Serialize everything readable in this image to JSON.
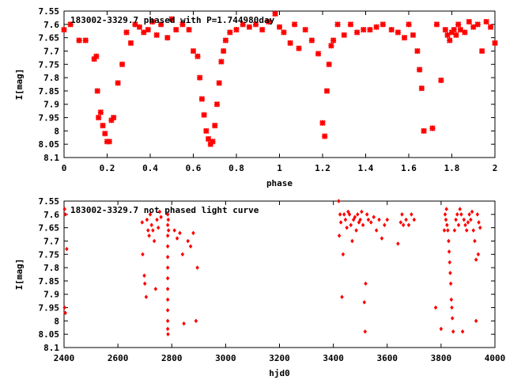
{
  "chart_data": [
    {
      "type": "scatter",
      "title": "183002-3329.7 phased with P=1.744980day",
      "xlabel": "phase",
      "ylabel": "I[mag]",
      "xlim": [
        0,
        2
      ],
      "ylim": [
        7.55,
        8.1
      ],
      "y_inverted": true,
      "grid": false,
      "marker_color": "#ff0000",
      "marker": "cross",
      "x_ticks": [
        "0",
        "0.2",
        "0.4",
        "0.6",
        "0.8",
        "1",
        "1.2",
        "1.4",
        "1.6",
        "1.8",
        "2"
      ],
      "y_ticks": [
        "7.55",
        "7.6",
        "7.65",
        "7.7",
        "7.75",
        "7.8",
        "7.85",
        "7.9",
        "7.95",
        "8",
        "8.05",
        "8.1"
      ],
      "series": [
        {
          "points": [
            [
              0.0,
              7.62
            ],
            [
              0.03,
              7.6
            ],
            [
              0.07,
              7.66
            ],
            [
              0.1,
              7.66
            ],
            [
              0.14,
              7.73
            ],
            [
              0.15,
              7.72
            ],
            [
              0.155,
              7.85
            ],
            [
              0.16,
              7.95
            ],
            [
              0.17,
              7.93
            ],
            [
              0.18,
              7.98
            ],
            [
              0.19,
              8.01
            ],
            [
              0.2,
              8.04
            ],
            [
              0.21,
              8.04
            ],
            [
              0.22,
              7.96
            ],
            [
              0.23,
              7.95
            ],
            [
              0.25,
              7.82
            ],
            [
              0.27,
              7.75
            ],
            [
              0.29,
              7.63
            ],
            [
              0.31,
              7.67
            ],
            [
              0.33,
              7.6
            ],
            [
              0.35,
              7.61
            ],
            [
              0.37,
              7.63
            ],
            [
              0.39,
              7.62
            ],
            [
              0.41,
              7.59
            ],
            [
              0.43,
              7.64
            ],
            [
              0.45,
              7.6
            ],
            [
              0.48,
              7.65
            ],
            [
              0.5,
              7.58
            ],
            [
              0.52,
              7.62
            ],
            [
              0.55,
              7.6
            ],
            [
              0.58,
              7.62
            ],
            [
              0.6,
              7.7
            ],
            [
              0.62,
              7.72
            ],
            [
              0.63,
              7.8
            ],
            [
              0.64,
              7.88
            ],
            [
              0.65,
              7.94
            ],
            [
              0.66,
              8.0
            ],
            [
              0.67,
              8.03
            ],
            [
              0.68,
              8.05
            ],
            [
              0.69,
              8.04
            ],
            [
              0.7,
              7.98
            ],
            [
              0.71,
              7.9
            ],
            [
              0.72,
              7.82
            ],
            [
              0.73,
              7.74
            ],
            [
              0.74,
              7.7
            ],
            [
              0.75,
              7.66
            ],
            [
              0.77,
              7.63
            ],
            [
              0.8,
              7.62
            ],
            [
              0.83,
              7.6
            ],
            [
              0.86,
              7.61
            ],
            [
              0.89,
              7.6
            ],
            [
              0.92,
              7.62
            ],
            [
              0.95,
              7.59
            ],
            [
              0.98,
              7.56
            ],
            [
              1.0,
              7.61
            ],
            [
              1.02,
              7.63
            ],
            [
              1.05,
              7.67
            ],
            [
              1.07,
              7.6
            ],
            [
              1.09,
              7.69
            ],
            [
              1.12,
              7.62
            ],
            [
              1.15,
              7.66
            ],
            [
              1.18,
              7.71
            ],
            [
              1.2,
              7.97
            ],
            [
              1.21,
              8.02
            ],
            [
              1.22,
              7.85
            ],
            [
              1.23,
              7.75
            ],
            [
              1.24,
              7.68
            ],
            [
              1.25,
              7.66
            ],
            [
              1.27,
              7.6
            ],
            [
              1.3,
              7.64
            ],
            [
              1.33,
              7.6
            ],
            [
              1.36,
              7.63
            ],
            [
              1.39,
              7.62
            ],
            [
              1.42,
              7.62
            ],
            [
              1.45,
              7.61
            ],
            [
              1.48,
              7.6
            ],
            [
              1.52,
              7.62
            ],
            [
              1.55,
              7.63
            ],
            [
              1.58,
              7.65
            ],
            [
              1.6,
              7.6
            ],
            [
              1.62,
              7.64
            ],
            [
              1.64,
              7.7
            ],
            [
              1.65,
              7.77
            ],
            [
              1.66,
              7.84
            ],
            [
              1.67,
              8.0
            ],
            [
              1.71,
              7.99
            ],
            [
              1.73,
              7.6
            ],
            [
              1.75,
              7.81
            ],
            [
              1.77,
              7.62
            ],
            [
              1.78,
              7.64
            ],
            [
              1.79,
              7.66
            ],
            [
              1.8,
              7.63
            ],
            [
              1.81,
              7.62
            ],
            [
              1.82,
              7.64
            ],
            [
              1.83,
              7.6
            ],
            [
              1.84,
              7.62
            ],
            [
              1.86,
              7.63
            ],
            [
              1.88,
              7.59
            ],
            [
              1.9,
              7.61
            ],
            [
              1.92,
              7.6
            ],
            [
              1.94,
              7.7
            ],
            [
              1.96,
              7.59
            ],
            [
              1.98,
              7.61
            ],
            [
              2.0,
              7.67
            ]
          ]
        }
      ]
    },
    {
      "type": "scatter",
      "title": "183002-3329.7 not phased light curve",
      "xlabel": "hjd0",
      "ylabel": "I[mag]",
      "xlim": [
        2400,
        4000
      ],
      "ylim": [
        7.55,
        8.1
      ],
      "y_inverted": true,
      "grid": false,
      "marker_color": "#ff0000",
      "marker": "diamond",
      "x_ticks": [
        "2400",
        "2600",
        "2800",
        "3000",
        "3200",
        "3400",
        "3600",
        "3800",
        "4000"
      ],
      "y_ticks": [
        "7.55",
        "7.6",
        "7.65",
        "7.7",
        "7.75",
        "7.8",
        "7.85",
        "7.9",
        "7.95",
        "8",
        "8.05",
        "8.1"
      ],
      "series": [
        {
          "points": [
            [
              2402,
              7.58
            ],
            [
              2405,
              7.6
            ],
            [
              2410,
              7.73
            ],
            [
              2402,
              7.95
            ],
            [
              2405,
              7.97
            ],
            [
              2690,
              7.63
            ],
            [
              2692,
              7.75
            ],
            [
              2698,
              7.83
            ],
            [
              2700,
              7.86
            ],
            [
              2705,
              7.91
            ],
            [
              2708,
              7.62
            ],
            [
              2712,
              7.66
            ],
            [
              2716,
              7.68
            ],
            [
              2720,
              7.6
            ],
            [
              2725,
              7.64
            ],
            [
              2730,
              7.66
            ],
            [
              2735,
              7.7
            ],
            [
              2740,
              7.88
            ],
            [
              2745,
              7.62
            ],
            [
              2750,
              7.65
            ],
            [
              2755,
              7.59
            ],
            [
              2760,
              7.61
            ],
            [
              2785,
              7.6
            ],
            [
              2785,
              7.64
            ],
            [
              2785,
              7.68
            ],
            [
              2785,
              7.72
            ],
            [
              2785,
              7.76
            ],
            [
              2785,
              7.8
            ],
            [
              2785,
              7.84
            ],
            [
              2785,
              7.88
            ],
            [
              2785,
              7.92
            ],
            [
              2785,
              7.96
            ],
            [
              2785,
              8.0
            ],
            [
              2785,
              8.03
            ],
            [
              2786,
              8.05
            ],
            [
              2787,
              7.62
            ],
            [
              2788,
              7.66
            ],
            [
              2810,
              7.66
            ],
            [
              2820,
              7.69
            ],
            [
              2830,
              7.67
            ],
            [
              2840,
              7.75
            ],
            [
              2845,
              8.01
            ],
            [
              2860,
              7.7
            ],
            [
              2870,
              7.72
            ],
            [
              2880,
              7.67
            ],
            [
              2890,
              8.0
            ],
            [
              2895,
              7.8
            ],
            [
              3420,
              7.55
            ],
            [
              3422,
              7.68
            ],
            [
              3425,
              7.6
            ],
            [
              3428,
              7.63
            ],
            [
              3432,
              7.91
            ],
            [
              3436,
              7.75
            ],
            [
              3440,
              7.6
            ],
            [
              3445,
              7.62
            ],
            [
              3450,
              7.65
            ],
            [
              3455,
              7.59
            ],
            [
              3460,
              7.6
            ],
            [
              3465,
              7.64
            ],
            [
              3470,
              7.7
            ],
            [
              3475,
              7.62
            ],
            [
              3480,
              7.61
            ],
            [
              3485,
              7.66
            ],
            [
              3490,
              7.6
            ],
            [
              3495,
              7.63
            ],
            [
              3500,
              7.62
            ],
            [
              3505,
              7.59
            ],
            [
              3510,
              7.64
            ],
            [
              3515,
              7.93
            ],
            [
              3518,
              8.04
            ],
            [
              3520,
              7.86
            ],
            [
              3525,
              7.6
            ],
            [
              3530,
              7.62
            ],
            [
              3540,
              7.63
            ],
            [
              3550,
              7.61
            ],
            [
              3560,
              7.66
            ],
            [
              3570,
              7.62
            ],
            [
              3580,
              7.69
            ],
            [
              3590,
              7.64
            ],
            [
              3600,
              7.62
            ],
            [
              3640,
              7.71
            ],
            [
              3650,
              7.63
            ],
            [
              3655,
              7.6
            ],
            [
              3660,
              7.64
            ],
            [
              3670,
              7.62
            ],
            [
              3680,
              7.64
            ],
            [
              3690,
              7.6
            ],
            [
              3700,
              7.62
            ],
            [
              3780,
              7.95
            ],
            [
              3800,
              8.03
            ],
            [
              3812,
              7.66
            ],
            [
              3815,
              7.6
            ],
            [
              3818,
              7.62
            ],
            [
              3820,
              7.58
            ],
            [
              3822,
              7.64
            ],
            [
              3825,
              7.66
            ],
            [
              3828,
              7.7
            ],
            [
              3830,
              7.74
            ],
            [
              3832,
              7.78
            ],
            [
              3834,
              7.82
            ],
            [
              3836,
              7.86
            ],
            [
              3838,
              7.92
            ],
            [
              3840,
              7.95
            ],
            [
              3842,
              7.99
            ],
            [
              3845,
              8.04
            ],
            [
              3850,
              7.66
            ],
            [
              3855,
              7.62
            ],
            [
              3860,
              7.6
            ],
            [
              3865,
              7.64
            ],
            [
              3870,
              7.58
            ],
            [
              3875,
              7.6
            ],
            [
              3880,
              8.04
            ],
            [
              3885,
              7.62
            ],
            [
              3890,
              7.64
            ],
            [
              3895,
              7.66
            ],
            [
              3900,
              7.63
            ],
            [
              3905,
              7.6
            ],
            [
              3910,
              7.62
            ],
            [
              3915,
              7.59
            ],
            [
              3920,
              7.66
            ],
            [
              3925,
              7.7
            ],
            [
              3930,
              7.77
            ],
            [
              3935,
              7.6
            ],
            [
              3940,
              7.63
            ],
            [
              3945,
              7.65
            ],
            [
              3930,
              8.0
            ],
            [
              3938,
              7.75
            ]
          ]
        }
      ]
    }
  ]
}
